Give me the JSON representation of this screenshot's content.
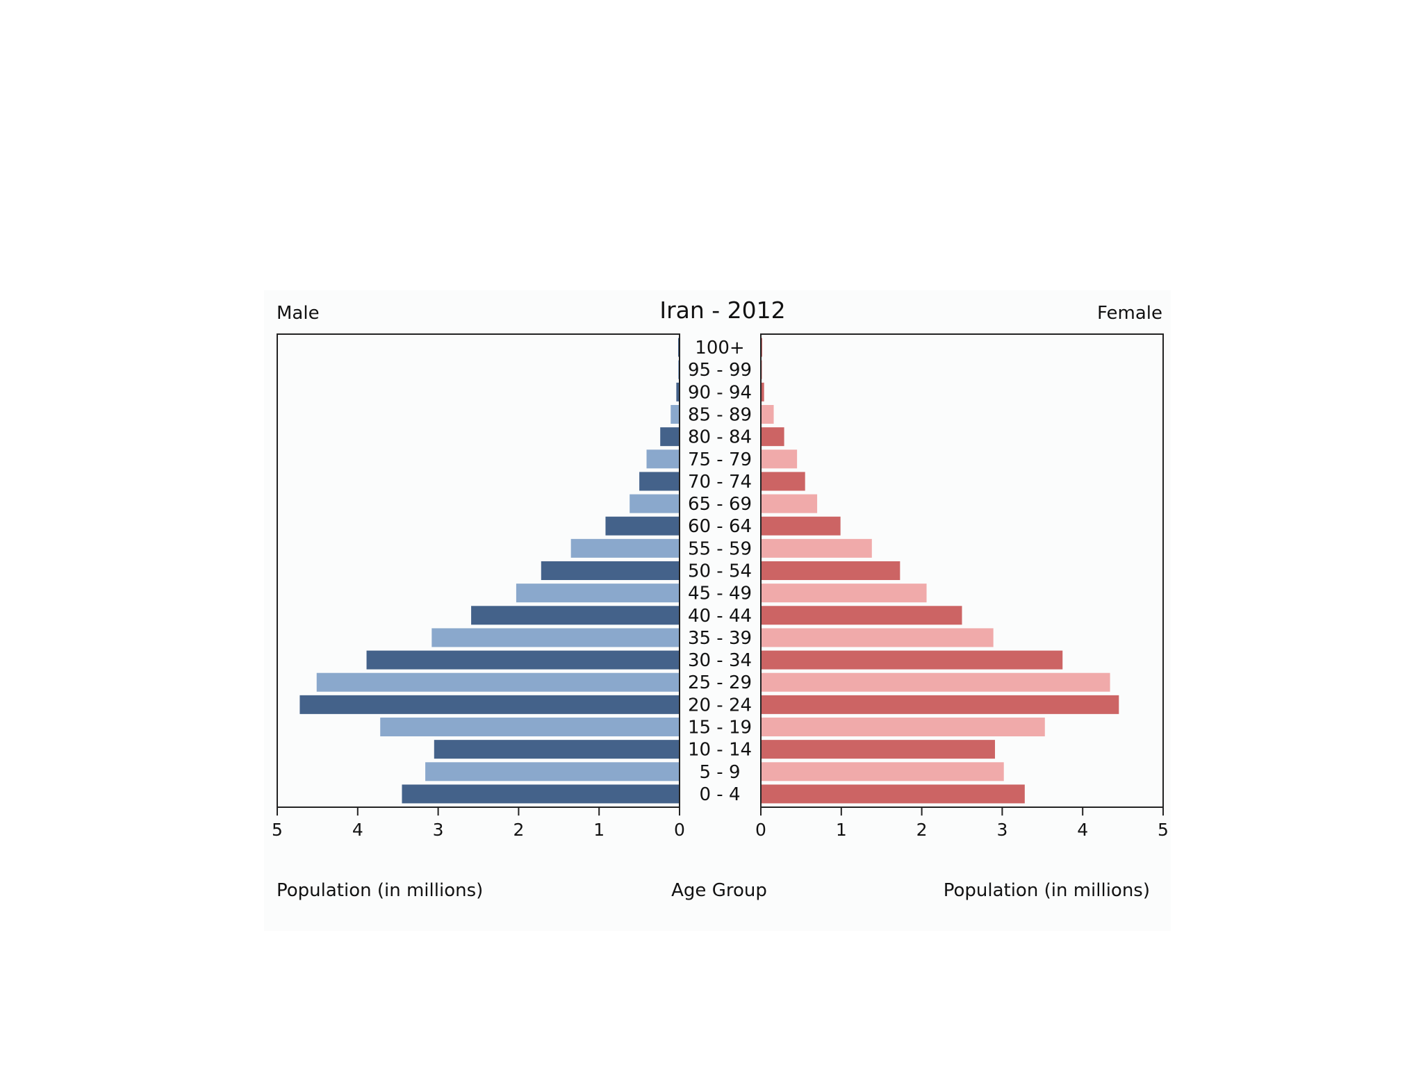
{
  "chart_data": {
    "type": "bar",
    "orientation": "horizontal",
    "subtype": "population-pyramid",
    "title": "Iran - 2012",
    "left_label": "Male",
    "right_label": "Female",
    "xlabel_left": "Population (in millions)",
    "xlabel_center": "Age Group",
    "xlabel_right": "Population (in millions)",
    "xlim": [
      0,
      5
    ],
    "x_ticks": [
      "0",
      "1",
      "2",
      "3",
      "4",
      "5"
    ],
    "grid": false,
    "categories": [
      "0 - 4",
      "5 - 9",
      "10 - 14",
      "15 - 19",
      "20 - 24",
      "25 - 29",
      "30 - 34",
      "35 - 39",
      "40 - 44",
      "45 - 49",
      "50 - 54",
      "55 - 59",
      "60 - 64",
      "65 - 69",
      "70 - 74",
      "75 - 79",
      "80 - 84",
      "85 - 89",
      "90 - 94",
      "95 - 99",
      "100+"
    ],
    "series": [
      {
        "name": "Male",
        "values": [
          3.45,
          3.16,
          3.05,
          3.72,
          4.72,
          4.51,
          3.89,
          3.08,
          2.59,
          2.03,
          1.72,
          1.35,
          0.92,
          0.62,
          0.5,
          0.41,
          0.24,
          0.11,
          0.04,
          0.01,
          0.005
        ],
        "colors": [
          "#44628a",
          "#8aa8cc"
        ]
      },
      {
        "name": "Female",
        "values": [
          3.28,
          3.02,
          2.91,
          3.53,
          4.45,
          4.34,
          3.75,
          2.89,
          2.5,
          2.06,
          1.73,
          1.38,
          0.99,
          0.7,
          0.55,
          0.45,
          0.29,
          0.16,
          0.04,
          0.01,
          0.005
        ],
        "colors": [
          "#cc6464",
          "#f0aaaa"
        ]
      }
    ]
  }
}
